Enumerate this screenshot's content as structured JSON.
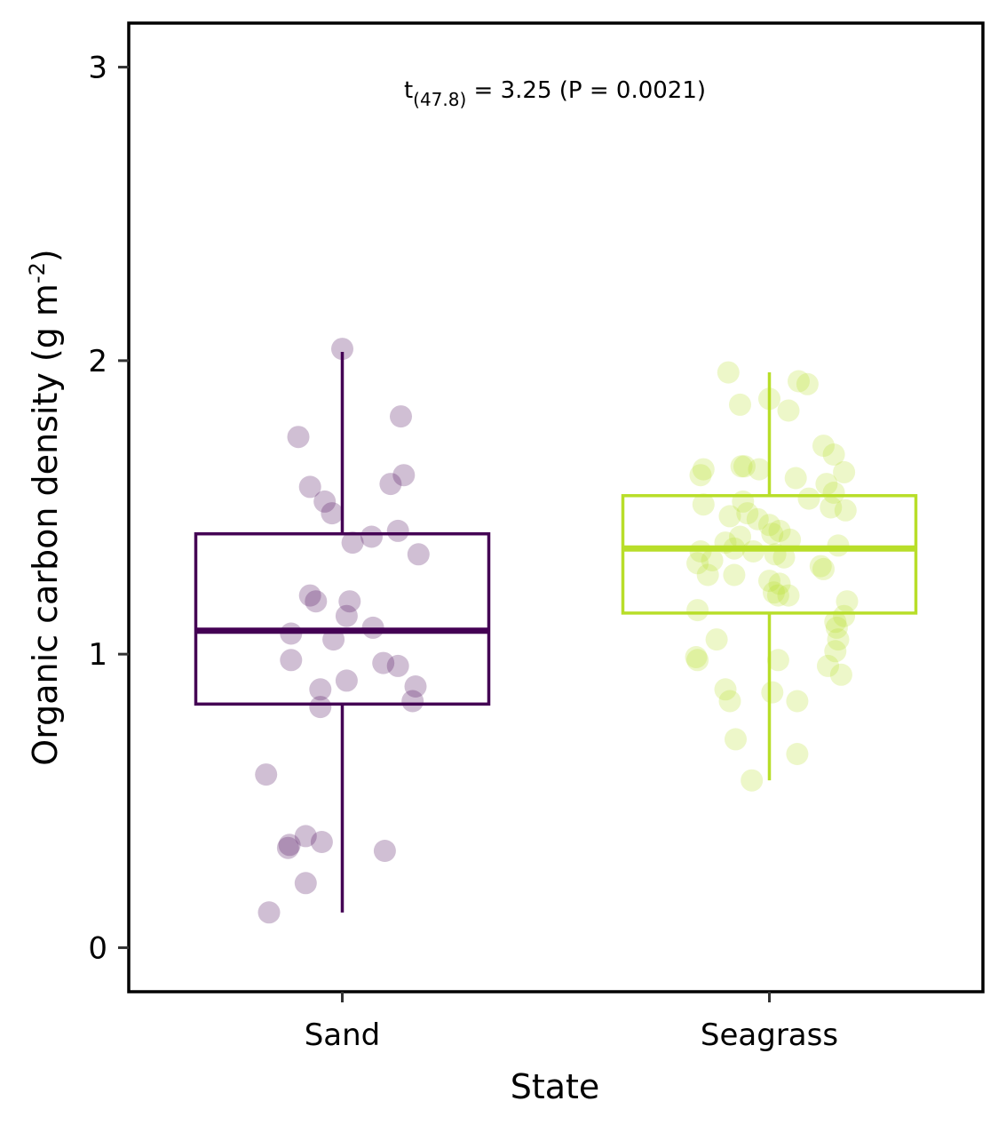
{
  "chart_data": {
    "type": "box",
    "xlabel": "State",
    "ylabel_main": "Organic carbon density (g m",
    "ylabel_sup": "-2",
    "ylabel_close": ")",
    "ylim": [
      -0.15,
      3.15
    ],
    "yticks": [
      0,
      1,
      2,
      3
    ],
    "ytick_labels": [
      "0",
      "1",
      "2",
      "3"
    ],
    "categories": [
      "Sand",
      "Seagrass"
    ],
    "annotation": {
      "main": "t",
      "subscript": "(47.8)",
      "rest": " = 3.25 (P = 0.0021)"
    },
    "grid": false,
    "legend": "none",
    "series": [
      {
        "category": "Sand",
        "color": "#440154",
        "box": {
          "whisker_low": 0.12,
          "q1": 0.83,
          "median": 1.08,
          "q3": 1.41,
          "whisker_high": 2.03
        },
        "points": [
          [
            2.04,
            0.0
          ],
          [
            1.81,
            0.4
          ],
          [
            1.74,
            -0.3
          ],
          [
            1.61,
            0.42
          ],
          [
            1.58,
            0.33
          ],
          [
            1.57,
            -0.22
          ],
          [
            1.52,
            -0.12
          ],
          [
            1.48,
            -0.07
          ],
          [
            1.42,
            0.38
          ],
          [
            1.4,
            0.2
          ],
          [
            1.38,
            0.07
          ],
          [
            1.34,
            0.52
          ],
          [
            1.2,
            -0.22
          ],
          [
            1.18,
            0.05
          ],
          [
            1.18,
            -0.18
          ],
          [
            1.13,
            0.03
          ],
          [
            1.09,
            0.21
          ],
          [
            1.07,
            -0.35
          ],
          [
            1.05,
            -0.06
          ],
          [
            0.98,
            -0.35
          ],
          [
            0.97,
            0.28
          ],
          [
            0.96,
            0.38
          ],
          [
            0.91,
            0.03
          ],
          [
            0.89,
            0.5
          ],
          [
            0.88,
            -0.15
          ],
          [
            0.84,
            0.48
          ],
          [
            0.82,
            -0.15
          ],
          [
            0.59,
            -0.52
          ],
          [
            0.36,
            -0.14
          ],
          [
            0.38,
            -0.25
          ],
          [
            0.34,
            -0.37
          ],
          [
            0.35,
            -0.36
          ],
          [
            0.33,
            0.29
          ],
          [
            0.22,
            -0.25
          ],
          [
            0.12,
            -0.5
          ]
        ]
      },
      {
        "category": "Seagrass",
        "color": "#B8DE29",
        "box": {
          "whisker_low": 0.57,
          "q1": 1.14,
          "median": 1.36,
          "q3": 1.54,
          "whisker_high": 1.96
        },
        "points": [
          [
            1.96,
            -0.28
          ],
          [
            1.93,
            0.2
          ],
          [
            1.92,
            0.26
          ],
          [
            1.87,
            0.0
          ],
          [
            1.85,
            -0.2
          ],
          [
            1.83,
            0.13
          ],
          [
            1.71,
            0.37
          ],
          [
            1.68,
            0.44
          ],
          [
            1.64,
            -0.19
          ],
          [
            1.64,
            -0.17
          ],
          [
            1.63,
            -0.07
          ],
          [
            1.63,
            -0.45
          ],
          [
            1.61,
            -0.47
          ],
          [
            1.62,
            0.51
          ],
          [
            1.6,
            0.18
          ],
          [
            1.58,
            0.39
          ],
          [
            1.55,
            0.44
          ],
          [
            1.53,
            0.27
          ],
          [
            1.51,
            -0.45
          ],
          [
            1.52,
            -0.18
          ],
          [
            1.5,
            0.42
          ],
          [
            1.49,
            0.52
          ],
          [
            1.47,
            -0.27
          ],
          [
            1.48,
            -0.15
          ],
          [
            1.46,
            -0.08
          ],
          [
            1.44,
            0.0
          ],
          [
            1.42,
            0.07
          ],
          [
            1.41,
            0.02
          ],
          [
            1.4,
            -0.2
          ],
          [
            1.39,
            0.14
          ],
          [
            1.38,
            -0.3
          ],
          [
            1.37,
            0.47
          ],
          [
            1.35,
            -0.47
          ],
          [
            1.36,
            -0.24
          ],
          [
            1.35,
            -0.11
          ],
          [
            1.34,
            0.04
          ],
          [
            1.33,
            0.1
          ],
          [
            1.32,
            -0.39
          ],
          [
            1.31,
            -0.49
          ],
          [
            1.3,
            0.35
          ],
          [
            1.29,
            0.37
          ],
          [
            1.27,
            -0.42
          ],
          [
            1.27,
            -0.24
          ],
          [
            1.25,
            0.0
          ],
          [
            1.24,
            0.07
          ],
          [
            1.21,
            0.03
          ],
          [
            1.2,
            0.06
          ],
          [
            1.2,
            0.13
          ],
          [
            1.18,
            0.53
          ],
          [
            1.15,
            -0.49
          ],
          [
            1.13,
            0.51
          ],
          [
            1.11,
            0.45
          ],
          [
            1.09,
            0.46
          ],
          [
            1.05,
            0.47
          ],
          [
            1.05,
            -0.36
          ],
          [
            1.01,
            0.45
          ],
          [
            0.99,
            -0.5
          ],
          [
            0.98,
            -0.49
          ],
          [
            0.98,
            0.06
          ],
          [
            0.96,
            0.4
          ],
          [
            0.93,
            0.49
          ],
          [
            0.88,
            -0.3
          ],
          [
            0.87,
            0.02
          ],
          [
            0.84,
            0.19
          ],
          [
            0.84,
            -0.27
          ],
          [
            0.71,
            -0.23
          ],
          [
            0.66,
            0.19
          ],
          [
            0.57,
            -0.12
          ]
        ]
      }
    ]
  }
}
